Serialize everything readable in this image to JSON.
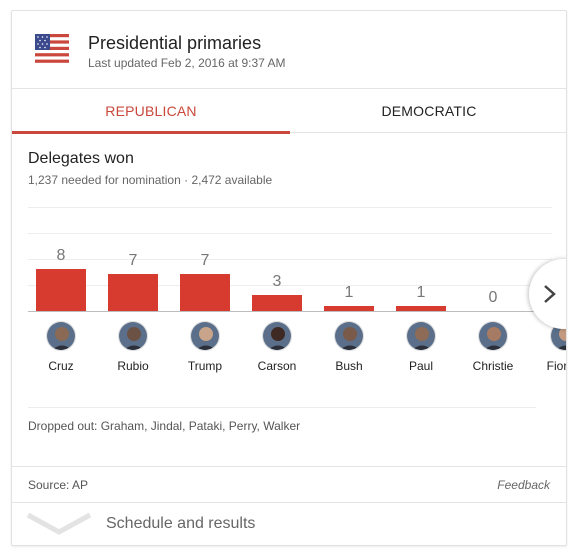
{
  "header": {
    "title": "Presidential primaries",
    "updated": "Last updated Feb 2, 2016 at 9:37 AM",
    "flag_icon": "us-flag-icon"
  },
  "tabs": [
    {
      "label": "REPUBLICAN",
      "active": true
    },
    {
      "label": "DEMOCRATIC",
      "active": false
    }
  ],
  "section": {
    "title": "Delegates won",
    "subtitle": "1,237 needed for nomination · 2,472 available"
  },
  "colors": {
    "accent": "#c9473b",
    "bar": "#d73a2f"
  },
  "chart_data": {
    "type": "bar",
    "title": "Delegates won",
    "categories": [
      "Cruz",
      "Rubio",
      "Trump",
      "Carson",
      "Bush",
      "Paul",
      "Christie",
      "Fiorina"
    ],
    "values": [
      8,
      7,
      7,
      3,
      1,
      1,
      0,
      0
    ],
    "value_labels": [
      "8",
      "7",
      "7",
      "3",
      "1",
      "1",
      "0",
      ""
    ],
    "ylim": [
      0,
      8
    ],
    "grid": true
  },
  "dropped_out": "Dropped out: Graham, Jindal, Pataki, Perry, Walker",
  "footer": {
    "source": "Source: AP",
    "feedback": "Feedback"
  },
  "expander": {
    "label": "Schedule and results",
    "icon": "chevron-down-icon"
  }
}
